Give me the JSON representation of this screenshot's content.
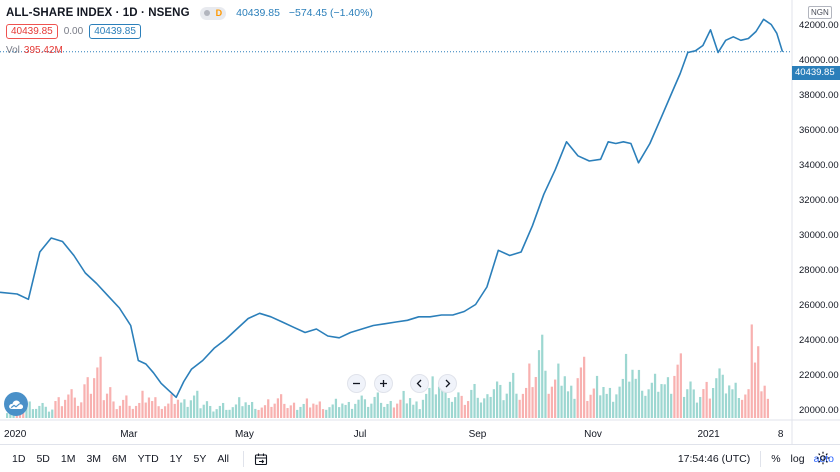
{
  "symbol": {
    "title": "ALL-SHARE INDEX · 1D · NSENG",
    "currency": "NGN",
    "market_badge": "D"
  },
  "ohlc": {
    "last": "40439.85",
    "change": "−574.45 (−1.40%)"
  },
  "price_boxes": {
    "bid": "40439.85",
    "spread": "0.00",
    "ask": "40439.85"
  },
  "volume": {
    "label": "Vol",
    "value": "395.42M"
  },
  "last_price_label": "40439.85",
  "colors": {
    "line": "#2b7fba",
    "up_volume": "#26a69a",
    "down_volume": "#ef5350",
    "accent": "#2962ff"
  },
  "nav_buttons": [
    "zoom-out",
    "zoom-in",
    "scroll-left",
    "scroll-right"
  ],
  "time_ranges": [
    "1D",
    "5D",
    "1M",
    "3M",
    "6M",
    "YTD",
    "1Y",
    "5Y",
    "All"
  ],
  "status": {
    "clock": "17:54:46 (UTC)",
    "percent": "%",
    "log": "log",
    "auto": "auto"
  },
  "chart_data": {
    "type": "line",
    "title": "ALL-SHARE INDEX · 1D · NSENG",
    "x_tick_labels": [
      "2020",
      "Mar",
      "May",
      "Jul",
      "Sep",
      "Nov",
      "2021",
      "8"
    ],
    "y_tick_labels": [
      "20000.00",
      "22000.00",
      "24000.00",
      "26000.00",
      "28000.00",
      "30000.00",
      "32000.00",
      "34000.00",
      "36000.00",
      "38000.00",
      "40000.00",
      "42000.00"
    ],
    "ylim": [
      19400,
      43400
    ],
    "last_value": 40439.85,
    "grid": false,
    "series": [
      {
        "name": "ALL-SHARE INDEX",
        "x": [
          "2019-12-24",
          "2020-01-02",
          "2020-01-08",
          "2020-01-14",
          "2020-01-20",
          "2020-01-26",
          "2020-02-01",
          "2020-02-07",
          "2020-02-13",
          "2020-02-19",
          "2020-02-25",
          "2020-03-02",
          "2020-03-06",
          "2020-03-10",
          "2020-03-14",
          "2020-03-18",
          "2020-03-22",
          "2020-03-26",
          "2020-03-30",
          "2020-04-03",
          "2020-04-09",
          "2020-04-15",
          "2020-04-21",
          "2020-04-27",
          "2020-05-03",
          "2020-05-09",
          "2020-05-15",
          "2020-05-21",
          "2020-05-27",
          "2020-06-02",
          "2020-06-08",
          "2020-06-14",
          "2020-06-20",
          "2020-06-26",
          "2020-07-02",
          "2020-07-08",
          "2020-07-14",
          "2020-07-20",
          "2020-07-26",
          "2020-08-01",
          "2020-08-07",
          "2020-08-13",
          "2020-08-19",
          "2020-08-25",
          "2020-08-31",
          "2020-09-06",
          "2020-09-12",
          "2020-09-18",
          "2020-09-24",
          "2020-09-30",
          "2020-10-06",
          "2020-10-12",
          "2020-10-18",
          "2020-10-24",
          "2020-10-30",
          "2020-11-05",
          "2020-11-09",
          "2020-11-13",
          "2020-11-17",
          "2020-11-21",
          "2020-11-25",
          "2020-12-01",
          "2020-12-07",
          "2020-12-13",
          "2020-12-17",
          "2020-12-21",
          "2020-12-25",
          "2020-12-29",
          "2021-01-02",
          "2021-01-06",
          "2021-01-10",
          "2021-01-14",
          "2021-01-18",
          "2021-01-22",
          "2021-01-26",
          "2021-01-30",
          "2021-02-03",
          "2021-02-06",
          "2021-02-09"
        ],
        "values": [
          26700,
          26600,
          26300,
          29000,
          29800,
          29600,
          28800,
          27800,
          27200,
          26500,
          25800,
          24800,
          22800,
          22600,
          22100,
          21500,
          21100,
          20700,
          21600,
          22300,
          22800,
          23500,
          24000,
          24600,
          25200,
          25500,
          25300,
          25000,
          24700,
          24400,
          24600,
          24200,
          24100,
          24400,
          24600,
          24800,
          24900,
          25000,
          25100,
          25300,
          25300,
          25400,
          25400,
          25600,
          26000,
          27000,
          29100,
          28800,
          29000,
          30500,
          32300,
          33700,
          35300,
          34500,
          34200,
          34300,
          35300,
          35200,
          35300,
          35200,
          34100,
          35200,
          36700,
          38200,
          39200,
          40400,
          40500,
          40800,
          41700,
          40400,
          41100,
          41300,
          41100,
          41200,
          41600,
          42300,
          42000,
          41500,
          40440
        ]
      }
    ],
    "volume_values": [
      0.6,
      0.9,
      1.1,
      1.0,
      0.7,
      1.3,
      1.8,
      1.2,
      2.4,
      3.6,
      2.2,
      1.1,
      1.5,
      1.0,
      1.7,
      1.3,
      0.9,
      1.4,
      1.1,
      1.6,
      1.2,
      0.8,
      1.0,
      0.9,
      1.3,
      1.0,
      0.8,
      1.1,
      1.4,
      0.9,
      1.0,
      1.3,
      1.1,
      0.9,
      1.2,
      1.0,
      1.4,
      1.1,
      1.5,
      1.0,
      1.3,
      1.8,
      1.1,
      2.0,
      2.6,
      2.2,
      1.6,
      1.3,
      2.0,
      1.4,
      2.6,
      2.2,
      3.0,
      2.0,
      3.4,
      5.2,
      2.4,
      3.2,
      1.9,
      3.6,
      2.1,
      2.8,
      2.0,
      2.6,
      4.0,
      3.0,
      2.2,
      2.6,
      2.4,
      3.8,
      2.6,
      1.9,
      2.4,
      3.3,
      2.7,
      2.2,
      1.8,
      5.5,
      1.9
    ],
    "volume_directions": [
      "up",
      "down",
      "up",
      "up",
      "up",
      "down",
      "down",
      "down",
      "down",
      "down",
      "down",
      "down",
      "down",
      "down",
      "down",
      "down",
      "down",
      "down",
      "up",
      "up",
      "up",
      "up",
      "up",
      "up",
      "up",
      "up",
      "down",
      "down",
      "down",
      "down",
      "up",
      "down",
      "down",
      "up",
      "up",
      "up",
      "up",
      "up",
      "up",
      "up",
      "down",
      "up",
      "up",
      "up",
      "up",
      "up",
      "up",
      "down",
      "up",
      "up",
      "up",
      "up",
      "up",
      "down",
      "down",
      "up",
      "down",
      "up",
      "up",
      "down",
      "down",
      "up",
      "up",
      "up",
      "up",
      "up",
      "up",
      "up",
      "up",
      "down",
      "up",
      "up",
      "down",
      "up",
      "up",
      "up",
      "down",
      "down",
      "down"
    ]
  }
}
